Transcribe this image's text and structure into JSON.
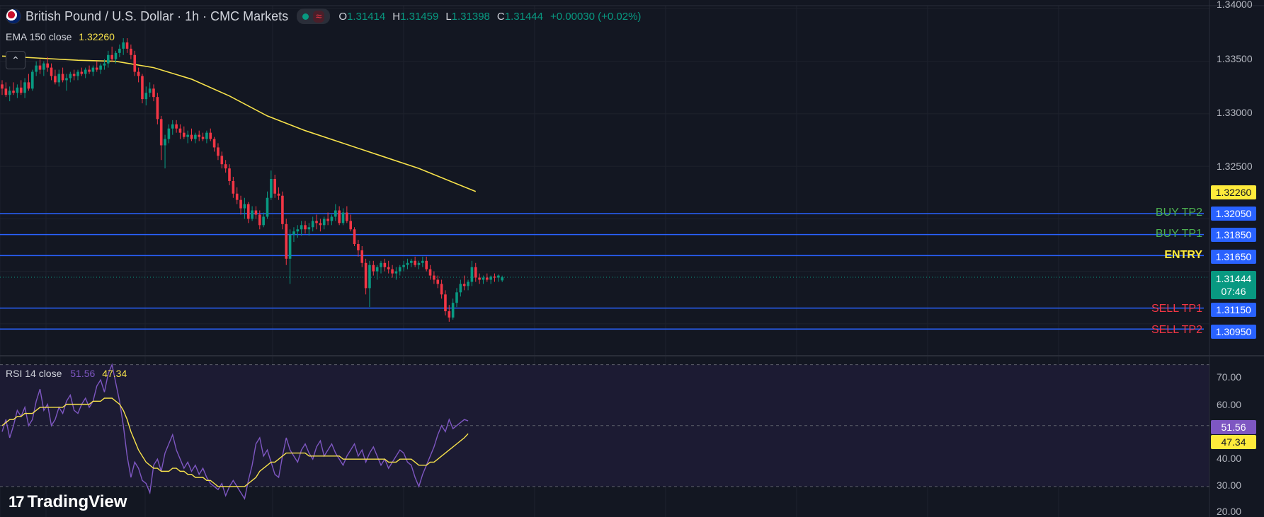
{
  "header": {
    "symbol_title": "British Pound / U.S. Dollar · 1h · CMC Markets",
    "wave_icon": "≈",
    "ohlc": [
      {
        "key": "O",
        "value": "1.31414"
      },
      {
        "key": "H",
        "value": "1.31459"
      },
      {
        "key": "L",
        "value": "1.31398"
      },
      {
        "key": "C",
        "value": "1.31444"
      }
    ],
    "change": "+0.00030 (+0.02%)"
  },
  "ema_legend": {
    "label": "EMA 150 close",
    "value": "1.32260"
  },
  "rsi_legend": {
    "label": "RSI 14 close",
    "value1": "51.56",
    "value2": "47.34"
  },
  "branding": {
    "logo_text": "TradingView",
    "logo_mark": "17"
  },
  "colors": {
    "background": "#131722",
    "up": "#089981",
    "down": "#f23645",
    "ema": "#f7e24b",
    "levels": "#2962ff",
    "rsi": "#7e57c2",
    "rsi_ma": "#f7e24b",
    "buy_label": "#4caf50",
    "entry_label": "#ffeb3b",
    "sell_label": "#f23645"
  },
  "price_axis": {
    "ticks": [
      "1.34000",
      "1.33500",
      "1.33000",
      "1.32500"
    ],
    "ema_tag": "1.32260",
    "current_price_tag": "1.31444",
    "countdown": "07:46"
  },
  "levels": [
    {
      "label": "BUY TP2",
      "price": "1.32050",
      "kind": "buy"
    },
    {
      "label": "BUY TP1",
      "price": "1.31850",
      "kind": "buy"
    },
    {
      "label": "ENTRY",
      "price": "1.31650",
      "kind": "entry"
    },
    {
      "label": "SELL TP1",
      "price": "1.31150",
      "kind": "sell"
    },
    {
      "label": "SELL TP2",
      "price": "1.30950",
      "kind": "sell"
    }
  ],
  "rsi_axis": {
    "ticks": [
      "70.00",
      "60.00",
      "50.00",
      "40.00",
      "30.00",
      "20.00"
    ],
    "tag_rsi": "51.56",
    "tag_ma": "47.34"
  },
  "chart_data": [
    {
      "type": "candlestick",
      "title": "British Pound / U.S. Dollar · 1h · CMC Markets",
      "ylim": [
        1.3075,
        1.3403
      ],
      "grid": true,
      "candles": [
        [
          1.3328,
          1.3332,
          1.3318,
          1.3324
        ],
        [
          1.3324,
          1.333,
          1.3316,
          1.3318
        ],
        [
          1.3318,
          1.3326,
          1.3312,
          1.3322
        ],
        [
          1.3322,
          1.333,
          1.3318,
          1.332
        ],
        [
          1.332,
          1.3328,
          1.3315,
          1.3325
        ],
        [
          1.3325,
          1.3332,
          1.3318,
          1.332
        ],
        [
          1.332,
          1.3334,
          1.3315,
          1.333
        ],
        [
          1.333,
          1.3338,
          1.3322,
          1.3324
        ],
        [
          1.3324,
          1.3342,
          1.3322,
          1.334
        ],
        [
          1.334,
          1.335,
          1.3336,
          1.3346
        ],
        [
          1.3346,
          1.3352,
          1.3338,
          1.3342
        ],
        [
          1.3342,
          1.335,
          1.3336,
          1.3348
        ],
        [
          1.3348,
          1.3354,
          1.334,
          1.3344
        ],
        [
          1.3344,
          1.3348,
          1.3332,
          1.3336
        ],
        [
          1.3336,
          1.3342,
          1.3328,
          1.333
        ],
        [
          1.333,
          1.3342,
          1.3326,
          1.3338
        ],
        [
          1.3338,
          1.3344,
          1.333,
          1.3332
        ],
        [
          1.3332,
          1.3338,
          1.3322,
          1.3334
        ],
        [
          1.3334,
          1.334,
          1.333,
          1.3338
        ],
        [
          1.3338,
          1.3342,
          1.3332,
          1.3336
        ],
        [
          1.3336,
          1.3342,
          1.3332,
          1.334
        ],
        [
          1.334,
          1.3344,
          1.3336,
          1.3338
        ],
        [
          1.3338,
          1.3344,
          1.3334,
          1.3342
        ],
        [
          1.3342,
          1.3346,
          1.3338,
          1.334
        ],
        [
          1.334,
          1.3346,
          1.3336,
          1.3344
        ],
        [
          1.3344,
          1.335,
          1.334,
          1.3342
        ],
        [
          1.3342,
          1.3348,
          1.3338,
          1.3346
        ],
        [
          1.3346,
          1.3352,
          1.3342,
          1.3348
        ],
        [
          1.3348,
          1.336,
          1.3344,
          1.3356
        ],
        [
          1.3356,
          1.3364,
          1.335,
          1.3352
        ],
        [
          1.3352,
          1.336,
          1.3348,
          1.3358
        ],
        [
          1.3358,
          1.3366,
          1.3354,
          1.3362
        ],
        [
          1.3362,
          1.3372,
          1.3356,
          1.3368
        ],
        [
          1.3368,
          1.3372,
          1.3358,
          1.3362
        ],
        [
          1.3362,
          1.3366,
          1.3352,
          1.3356
        ],
        [
          1.3356,
          1.336,
          1.3336,
          1.334
        ],
        [
          1.334,
          1.3344,
          1.333,
          1.3336
        ],
        [
          1.3336,
          1.3338,
          1.331,
          1.3314
        ],
        [
          1.3314,
          1.3326,
          1.3308,
          1.332
        ],
        [
          1.332,
          1.333,
          1.3316,
          1.3324
        ],
        [
          1.3324,
          1.3328,
          1.3312,
          1.3316
        ],
        [
          1.3316,
          1.332,
          1.329,
          1.3295
        ],
        [
          1.3295,
          1.3298,
          1.3256,
          1.327
        ],
        [
          1.327,
          1.328,
          1.3248,
          1.3276
        ],
        [
          1.3276,
          1.329,
          1.3272,
          1.3286
        ],
        [
          1.3286,
          1.3294,
          1.328,
          1.329
        ],
        [
          1.329,
          1.3294,
          1.3282,
          1.3286
        ],
        [
          1.3286,
          1.329,
          1.3276,
          1.3282
        ],
        [
          1.3282,
          1.3288,
          1.3276,
          1.3278
        ],
        [
          1.3278,
          1.3284,
          1.3272,
          1.328
        ],
        [
          1.328,
          1.3286,
          1.3274,
          1.3276
        ],
        [
          1.3276,
          1.3282,
          1.3272,
          1.328
        ],
        [
          1.328,
          1.3284,
          1.3274,
          1.3278
        ],
        [
          1.3278,
          1.3282,
          1.3274,
          1.3276
        ],
        [
          1.3276,
          1.3284,
          1.3272,
          1.3282
        ],
        [
          1.3282,
          1.3286,
          1.3274,
          1.3276
        ],
        [
          1.3276,
          1.3278,
          1.3264,
          1.3268
        ],
        [
          1.3268,
          1.3272,
          1.3256,
          1.326
        ],
        [
          1.326,
          1.3264,
          1.3248,
          1.3252
        ],
        [
          1.3252,
          1.3256,
          1.3244,
          1.3248
        ],
        [
          1.3248,
          1.3252,
          1.3232,
          1.3236
        ],
        [
          1.3236,
          1.324,
          1.322,
          1.3224
        ],
        [
          1.3224,
          1.323,
          1.3214,
          1.3218
        ],
        [
          1.3218,
          1.3222,
          1.3204,
          1.321
        ],
        [
          1.321,
          1.322,
          1.32,
          1.3214
        ],
        [
          1.3214,
          1.3216,
          1.3196,
          1.32
        ],
        [
          1.32,
          1.3212,
          1.3198,
          1.3208
        ],
        [
          1.3208,
          1.3212,
          1.32,
          1.3204
        ],
        [
          1.3204,
          1.3208,
          1.319,
          1.3194
        ],
        [
          1.3194,
          1.3206,
          1.3192,
          1.3202
        ],
        [
          1.3202,
          1.3226,
          1.32,
          1.322
        ],
        [
          1.322,
          1.3246,
          1.3218,
          1.3238
        ],
        [
          1.3238,
          1.3242,
          1.322,
          1.3224
        ],
        [
          1.3224,
          1.323,
          1.3218,
          1.3222
        ],
        [
          1.3222,
          1.3226,
          1.319,
          1.3195
        ],
        [
          1.3195,
          1.32,
          1.3156,
          1.3162
        ],
        [
          1.3162,
          1.319,
          1.3138,
          1.3185
        ],
        [
          1.3185,
          1.3192,
          1.3178,
          1.3188
        ],
        [
          1.3188,
          1.3194,
          1.3182,
          1.319
        ],
        [
          1.319,
          1.3198,
          1.3184,
          1.3194
        ],
        [
          1.3194,
          1.3198,
          1.3186,
          1.319
        ],
        [
          1.319,
          1.3196,
          1.3184,
          1.3192
        ],
        [
          1.3192,
          1.3202,
          1.3188,
          1.3198
        ],
        [
          1.3198,
          1.3204,
          1.319,
          1.3196
        ],
        [
          1.3196,
          1.32,
          1.3188,
          1.3194
        ],
        [
          1.3194,
          1.3202,
          1.319,
          1.32
        ],
        [
          1.32,
          1.3206,
          1.3194,
          1.3198
        ],
        [
          1.3198,
          1.3204,
          1.3194,
          1.3202
        ],
        [
          1.3202,
          1.3214,
          1.3198,
          1.3208
        ],
        [
          1.3208,
          1.3212,
          1.3194,
          1.3196
        ],
        [
          1.3196,
          1.321,
          1.3194,
          1.3206
        ],
        [
          1.3206,
          1.3212,
          1.3196,
          1.3198
        ],
        [
          1.3198,
          1.3204,
          1.3188,
          1.319
        ],
        [
          1.319,
          1.3192,
          1.3174,
          1.3176
        ],
        [
          1.3176,
          1.318,
          1.3164,
          1.317
        ],
        [
          1.317,
          1.3174,
          1.3154,
          1.3158
        ],
        [
          1.3158,
          1.3162,
          1.3128,
          1.3134
        ],
        [
          1.3134,
          1.316,
          1.3116,
          1.3156
        ],
        [
          1.3156,
          1.316,
          1.3146,
          1.315
        ],
        [
          1.315,
          1.3156,
          1.3142,
          1.3154
        ],
        [
          1.3154,
          1.316,
          1.3148,
          1.3158
        ],
        [
          1.3158,
          1.3162,
          1.315,
          1.3154
        ],
        [
          1.3154,
          1.316,
          1.3148,
          1.3152
        ],
        [
          1.3152,
          1.3156,
          1.3144,
          1.3148
        ],
        [
          1.3148,
          1.3154,
          1.3142,
          1.315
        ],
        [
          1.315,
          1.3156,
          1.3146,
          1.3154
        ],
        [
          1.3154,
          1.316,
          1.315,
          1.3156
        ],
        [
          1.3156,
          1.3162,
          1.3152,
          1.3158
        ],
        [
          1.3158,
          1.3162,
          1.3154,
          1.316
        ],
        [
          1.316,
          1.3164,
          1.3154,
          1.3156
        ],
        [
          1.3156,
          1.316,
          1.3152,
          1.3158
        ],
        [
          1.3158,
          1.3164,
          1.3154,
          1.316
        ],
        [
          1.316,
          1.3164,
          1.315,
          1.3152
        ],
        [
          1.3152,
          1.3156,
          1.3142,
          1.3146
        ],
        [
          1.3146,
          1.315,
          1.3138,
          1.3142
        ],
        [
          1.3142,
          1.3146,
          1.3134,
          1.3138
        ],
        [
          1.3138,
          1.3142,
          1.3124,
          1.3128
        ],
        [
          1.3128,
          1.3132,
          1.3108,
          1.3112
        ],
        [
          1.3112,
          1.3118,
          1.3102,
          1.3106
        ],
        [
          1.3106,
          1.3124,
          1.3104,
          1.312
        ],
        [
          1.312,
          1.3134,
          1.3116,
          1.313
        ],
        [
          1.313,
          1.3142,
          1.3126,
          1.3138
        ],
        [
          1.3138,
          1.3146,
          1.3132,
          1.3136
        ],
        [
          1.3136,
          1.3142,
          1.3132,
          1.314
        ],
        [
          1.314,
          1.316,
          1.3136,
          1.3154
        ],
        [
          1.3154,
          1.3158,
          1.314,
          1.3144
        ],
        [
          1.3144,
          1.3148,
          1.3138,
          1.3142
        ],
        [
          1.3142,
          1.3146,
          1.3138,
          1.3144
        ],
        [
          1.3144,
          1.3148,
          1.314,
          1.3142
        ],
        [
          1.3142,
          1.3146,
          1.3138,
          1.3145
        ],
        [
          1.3145,
          1.3148,
          1.314,
          1.3144
        ],
        [
          1.3144,
          1.3147,
          1.314,
          1.3146
        ],
        [
          1.31414,
          1.31459,
          1.31398,
          1.31444
        ]
      ],
      "ema": [
        [
          0,
          1.3355
        ],
        [
          10,
          1.3353
        ],
        [
          20,
          1.3351
        ],
        [
          30,
          1.335
        ],
        [
          40,
          1.3344
        ],
        [
          50,
          1.3333
        ],
        [
          60,
          1.3317
        ],
        [
          70,
          1.3298
        ],
        [
          80,
          1.3284
        ],
        [
          90,
          1.3272
        ],
        [
          100,
          1.326
        ],
        [
          110,
          1.3248
        ],
        [
          125,
          1.3226
        ]
      ]
    },
    {
      "type": "line",
      "title": "RSI 14 close",
      "ylim": [
        20,
        72
      ],
      "series": [
        {
          "name": "RSI 14 close",
          "values": [
            48,
            52,
            46,
            50,
            55,
            53,
            56,
            50,
            52,
            58,
            62,
            55,
            57,
            50,
            52,
            56,
            54,
            58,
            60,
            55,
            54,
            57,
            59,
            56,
            58,
            63,
            65,
            61,
            67,
            70,
            64,
            58,
            50,
            40,
            33,
            38,
            36,
            32,
            31,
            28,
            37,
            39,
            35,
            41,
            44,
            47,
            42,
            39,
            36,
            38,
            35,
            37,
            34,
            36,
            33,
            31,
            30,
            29,
            31,
            27,
            30,
            32,
            30,
            28,
            26,
            32,
            37,
            44,
            46,
            40,
            42,
            38,
            34,
            33,
            40,
            46,
            42,
            40,
            38,
            42,
            44,
            41,
            39,
            43,
            45,
            40,
            42,
            44,
            41,
            39,
            37,
            40,
            42,
            44,
            40,
            42,
            38,
            41,
            43,
            40,
            37,
            39,
            36,
            38,
            40,
            42,
            41,
            38,
            37,
            33,
            30,
            34,
            37,
            40,
            43,
            47,
            50,
            48,
            52,
            49,
            50,
            51,
            52,
            51.56
          ]
        },
        {
          "name": "RSI MA",
          "values": [
            50,
            51,
            52,
            52,
            53,
            53,
            54,
            54,
            54,
            55,
            56,
            56,
            56,
            56,
            56,
            56,
            56,
            57,
            57,
            57,
            57,
            57,
            57,
            57,
            58,
            58,
            58,
            59,
            59,
            59,
            58,
            57,
            55,
            52,
            48,
            45,
            42,
            40,
            38,
            37,
            36,
            36,
            35,
            35,
            35,
            36,
            36,
            35,
            35,
            34,
            34,
            33,
            33,
            33,
            32,
            32,
            31,
            30,
            30,
            30,
            30,
            30,
            30,
            30,
            30,
            31,
            32,
            33,
            35,
            36,
            37,
            38,
            38,
            39,
            40,
            41,
            41,
            41,
            41,
            41,
            41,
            40,
            40,
            40,
            40,
            40,
            40,
            40,
            40,
            40,
            39,
            39,
            39,
            39,
            39,
            39,
            39,
            39,
            39,
            39,
            39,
            39,
            38,
            38,
            38,
            39,
            39,
            39,
            39,
            38,
            37,
            37,
            37,
            38,
            38,
            39,
            40,
            41,
            42,
            43,
            44,
            45,
            46,
            47.34
          ]
        }
      ],
      "bands": [
        30,
        50,
        70
      ]
    }
  ]
}
